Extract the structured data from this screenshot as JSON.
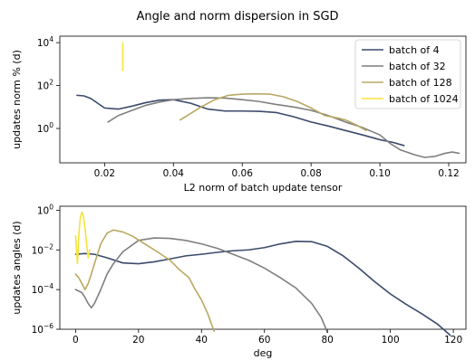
{
  "figure": {
    "title": "Angle and norm dispersion in SGD"
  },
  "colors": {
    "batch_4": "#3b4a6b",
    "batch_32": "#7f7f7f",
    "batch_128": "#b8a862",
    "batch_1024": "#f5e33a"
  },
  "chart_data": [
    {
      "type": "line",
      "xlabel": "L2 norm of batch update tensor",
      "ylabel": "updates norm % (d)",
      "xlim": [
        0.007,
        0.125
      ],
      "ylim_log10": [
        -1.6,
        4.3
      ],
      "yscale": "log",
      "xticks": [
        "0.02",
        "0.04",
        "0.06",
        "0.08",
        "0.10",
        "0.12"
      ],
      "xtick_values": [
        0.02,
        0.04,
        0.06,
        0.08,
        0.1,
        0.12
      ],
      "yticks": [
        {
          "base": "10",
          "exp": "4"
        },
        {
          "base": "10",
          "exp": "2"
        },
        {
          "base": "10",
          "exp": "0"
        }
      ],
      "ytick_values": [
        4,
        2,
        0
      ],
      "legend": {
        "position": "top-right",
        "entries": [
          "batch of 4",
          "batch of 32",
          "batch of 128",
          "batch of 1024"
        ]
      },
      "series": [
        {
          "name": "batch of 4",
          "color_key": "batch_4",
          "x": [
            0.012,
            0.014,
            0.016,
            0.018,
            0.02,
            0.024,
            0.028,
            0.032,
            0.036,
            0.04,
            0.045,
            0.05,
            0.055,
            0.06,
            0.065,
            0.07,
            0.075,
            0.08,
            0.085,
            0.09,
            0.095,
            0.1,
            0.104,
            0.107
          ],
          "y": [
            35,
            33,
            25,
            15,
            9,
            8,
            11,
            16,
            21,
            22,
            15,
            8,
            6.5,
            6.5,
            6.3,
            5.5,
            3.5,
            2.0,
            1.3,
            0.8,
            0.5,
            0.3,
            0.22,
            0.16
          ]
        },
        {
          "name": "batch of 32",
          "color_key": "batch_32",
          "x": [
            0.021,
            0.024,
            0.028,
            0.032,
            0.036,
            0.04,
            0.045,
            0.05,
            0.055,
            0.06,
            0.065,
            0.07,
            0.075,
            0.08,
            0.085,
            0.09,
            0.095,
            0.1,
            0.103,
            0.106,
            0.11,
            0.113,
            0.116,
            0.119,
            0.121,
            0.123
          ],
          "y": [
            2,
            4,
            7,
            12,
            17,
            22,
            25,
            27,
            26,
            22,
            18,
            13,
            10,
            7,
            4,
            2,
            1.1,
            0.5,
            0.2,
            0.1,
            0.06,
            0.045,
            0.05,
            0.07,
            0.08,
            0.07
          ]
        },
        {
          "name": "batch of 128",
          "color_key": "batch_128",
          "x": [
            0.042,
            0.045,
            0.048,
            0.052,
            0.056,
            0.06,
            0.064,
            0.068,
            0.072,
            0.076,
            0.08,
            0.084,
            0.088,
            0.09,
            0.093,
            0.096
          ],
          "y": [
            2.5,
            5,
            10,
            22,
            35,
            40,
            41,
            40,
            30,
            18,
            9,
            4,
            3,
            2.5,
            1.5,
            0.8
          ]
        },
        {
          "name": "batch of 1024",
          "color_key": "batch_1024",
          "x": [
            0.0253,
            0.0253,
            0.0253,
            0.0253
          ],
          "y": [
            10000,
            3000,
            1000,
            500
          ]
        }
      ]
    },
    {
      "type": "line",
      "xlabel": "deg",
      "ylabel": "updates angles (d)",
      "xlim": [
        -5,
        124
      ],
      "ylim_log10": [
        -6,
        0.2
      ],
      "yscale": "log",
      "xticks": [
        "0",
        "20",
        "40",
        "60",
        "80",
        "100",
        "120"
      ],
      "xtick_values": [
        0,
        20,
        40,
        60,
        80,
        100,
        120
      ],
      "yticks": [
        {
          "base": "10",
          "exp": "0"
        },
        {
          "base": "10",
          "exp": "−2"
        },
        {
          "base": "10",
          "exp": "−4"
        },
        {
          "base": "10",
          "exp": "−6"
        }
      ],
      "ytick_values": [
        0,
        -2,
        -4,
        -6
      ],
      "series": [
        {
          "name": "batch of 4",
          "color_key": "batch_4",
          "x": [
            0,
            3,
            6,
            10,
            15,
            20,
            25,
            30,
            35,
            40,
            45,
            50,
            55,
            60,
            65,
            70,
            75,
            80,
            85,
            90,
            95,
            100,
            105,
            110,
            115,
            119
          ],
          "y": [
            0.006,
            0.0065,
            0.006,
            0.004,
            0.0022,
            0.002,
            0.0025,
            0.0035,
            0.005,
            0.006,
            0.0075,
            0.009,
            0.01,
            0.013,
            0.02,
            0.027,
            0.026,
            0.015,
            0.005,
            0.0012,
            0.00025,
            6e-05,
            1.8e-05,
            6e-06,
            1.8e-06,
            5e-07
          ]
        },
        {
          "name": "batch of 32",
          "color_key": "batch_32",
          "x": [
            0,
            2,
            3,
            4,
            5,
            6,
            8,
            10,
            12,
            15,
            20,
            25,
            30,
            35,
            40,
            45,
            50,
            55,
            60,
            65,
            70,
            75,
            78,
            80
          ],
          "y": [
            0.0001,
            7e-05,
            4e-05,
            2e-05,
            1.2e-05,
            2e-05,
            0.0001,
            0.0006,
            0.002,
            0.008,
            0.03,
            0.04,
            0.038,
            0.03,
            0.02,
            0.012,
            0.006,
            0.003,
            0.0012,
            0.0004,
            0.00012,
            2e-05,
            4e-06,
            7e-07
          ]
        },
        {
          "name": "batch of 128",
          "color_key": "batch_128",
          "x": [
            0,
            1,
            2,
            3,
            4,
            5,
            6,
            8,
            10,
            12,
            15,
            18,
            22,
            26,
            30,
            33,
            36,
            38,
            40,
            42,
            44
          ],
          "y": [
            0.0006,
            0.0004,
            0.0002,
            0.0001,
            0.0002,
            0.0006,
            0.002,
            0.02,
            0.07,
            0.1,
            0.08,
            0.05,
            0.02,
            0.008,
            0.003,
            0.001,
            0.0004,
            0.0001,
            3e-05,
            6e-06,
            8e-07
          ]
        },
        {
          "name": "batch of 1024",
          "color_key": "batch_1024",
          "x": [
            0,
            0.3,
            0.6,
            1,
            1.5,
            2,
            2.5,
            3,
            3.5,
            4,
            4.5
          ],
          "y": [
            0.05,
            0.01,
            0.002,
            0.05,
            0.4,
            0.8,
            0.5,
            0.12,
            0.02,
            0.004,
            0.01
          ]
        }
      ]
    }
  ]
}
